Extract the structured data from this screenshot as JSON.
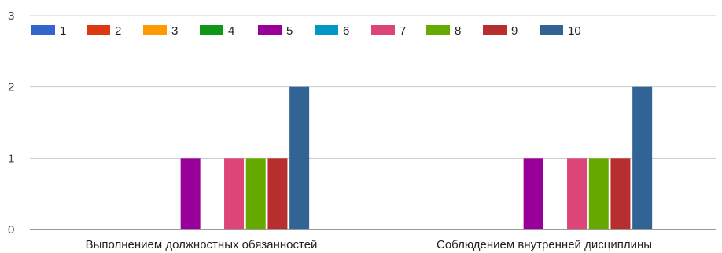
{
  "chart_data": {
    "type": "bar",
    "categories": [
      "Выполнением должностных обязанностей",
      "Соблюдением внутренней дисциплины"
    ],
    "series": [
      {
        "name": "1",
        "color": "#3366cc",
        "values": [
          0,
          0
        ]
      },
      {
        "name": "2",
        "color": "#dc3912",
        "values": [
          0,
          0
        ]
      },
      {
        "name": "3",
        "color": "#ff9900",
        "values": [
          0,
          0
        ]
      },
      {
        "name": "4",
        "color": "#109618",
        "values": [
          0,
          0
        ]
      },
      {
        "name": "5",
        "color": "#990099",
        "values": [
          1,
          1
        ]
      },
      {
        "name": "6",
        "color": "#0099c6",
        "values": [
          0,
          0
        ]
      },
      {
        "name": "7",
        "color": "#dd4477",
        "values": [
          1,
          1
        ]
      },
      {
        "name": "8",
        "color": "#66aa00",
        "values": [
          1,
          1
        ]
      },
      {
        "name": "9",
        "color": "#b82e2e",
        "values": [
          1,
          1
        ]
      },
      {
        "name": "10",
        "color": "#316395",
        "values": [
          2,
          2
        ]
      }
    ],
    "yticks": [
      "0",
      "1",
      "2",
      "3"
    ],
    "ylim": [
      0,
      3
    ],
    "grid": true,
    "legend": "top-left"
  }
}
